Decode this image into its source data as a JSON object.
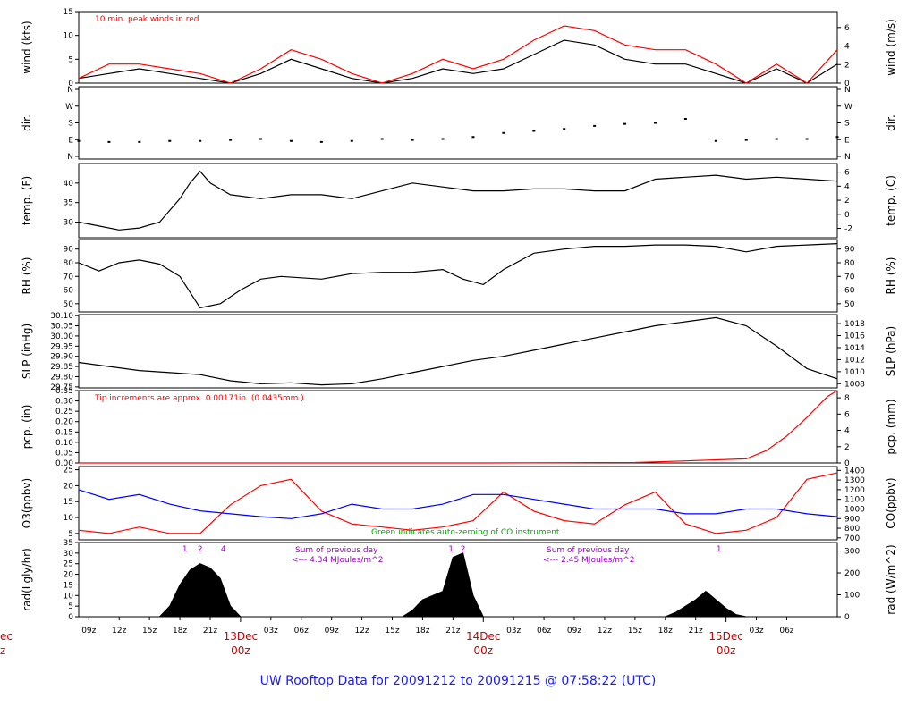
{
  "title": "UW Rooftop Data for 20091212  to  20091215 @ 07:58:22  (UTC)",
  "colors": {
    "red": "#ff0000",
    "blue": "#0000ff",
    "green": "#00aa00",
    "purple": "#9900cc",
    "dayred": "#cc0000",
    "titleblue": "#1a1aff"
  },
  "chart_data": [
    {
      "id": "wind",
      "type": "line",
      "ylabel_left": "wind (kts)",
      "ylabel_right": "wind (m/s)",
      "yticks_left": [
        "0",
        "5",
        "10",
        "15"
      ],
      "ylim_left": [
        0,
        15
      ],
      "yticks_right": [
        "0",
        "2",
        "4",
        "6"
      ],
      "ylim_right": [
        0,
        7.72
      ],
      "annotation": "10 min. peak winds in red",
      "series": [
        {
          "name": "wind speed (kts)",
          "color": "#000000",
          "x": [
            0,
            3,
            6,
            9,
            12,
            15,
            18,
            21,
            24,
            27,
            30,
            33,
            36,
            39,
            42,
            45,
            48,
            51,
            54,
            57,
            60,
            63,
            66,
            69,
            72,
            75
          ],
          "y": [
            1,
            2,
            3,
            2,
            1,
            0,
            2,
            5,
            3,
            1,
            0,
            1,
            3,
            2,
            3,
            6,
            9,
            8,
            5,
            4,
            4,
            2,
            0,
            3,
            0,
            4
          ]
        },
        {
          "name": "10 min. peak winds",
          "color": "#ff0000",
          "x": [
            0,
            3,
            6,
            9,
            12,
            15,
            18,
            21,
            24,
            27,
            30,
            33,
            36,
            39,
            42,
            45,
            48,
            51,
            54,
            57,
            60,
            63,
            66,
            69,
            72,
            75
          ],
          "y": [
            1,
            4,
            4,
            3,
            2,
            0,
            3,
            7,
            5,
            2,
            0,
            2,
            5,
            3,
            5,
            9,
            12,
            11,
            8,
            7,
            7,
            4,
            0,
            4,
            0,
            7
          ]
        }
      ]
    },
    {
      "id": "dir",
      "type": "scatter",
      "ylabel_left": "dir.",
      "ylabel_right": "dir.",
      "yticks_left": [
        "N",
        "E",
        "S",
        "W",
        "N"
      ],
      "ylim_left": [
        0,
        360
      ],
      "yticks_right": [
        "N",
        "E",
        "S",
        "W",
        "N"
      ],
      "series": [
        {
          "name": "direction (deg)",
          "color": "#000000",
          "x": [
            0,
            3,
            6,
            9,
            12,
            15,
            18,
            21,
            24,
            27,
            30,
            33,
            36,
            39,
            42,
            45,
            48,
            51,
            54,
            57,
            60,
            63,
            66,
            69,
            72,
            75
          ],
          "y": [
            90,
            85,
            85,
            90,
            90,
            95,
            100,
            90,
            85,
            90,
            100,
            95,
            100,
            110,
            130,
            140,
            150,
            165,
            175,
            180,
            200,
            90,
            95,
            100,
            100,
            110
          ]
        }
      ]
    },
    {
      "id": "temp",
      "type": "line",
      "ylabel_left": "temp. (F)",
      "ylabel_right": "temp. (C)",
      "yticks_left": [
        "30",
        "35",
        "40"
      ],
      "ylim_left": [
        26,
        45
      ],
      "yticks_right": [
        "-2",
        "0",
        "2",
        "4",
        "6"
      ],
      "ylim_right": [
        -3.33,
        7.22
      ],
      "series": [
        {
          "name": "temperature (F)",
          "color": "#000000",
          "x": [
            0,
            2,
            4,
            6,
            8,
            10,
            11,
            12,
            13,
            15,
            18,
            21,
            24,
            27,
            30,
            33,
            36,
            39,
            42,
            45,
            48,
            51,
            54,
            57,
            60,
            63,
            66,
            69,
            72,
            75
          ],
          "y": [
            30,
            29,
            28,
            28.5,
            30,
            36,
            40,
            43,
            40,
            37,
            36,
            37,
            37,
            36,
            38,
            40,
            39,
            38,
            38,
            38.5,
            38.5,
            38,
            38,
            41,
            41.5,
            42,
            41,
            41.5,
            41,
            40.5
          ]
        }
      ]
    },
    {
      "id": "rh",
      "type": "line",
      "ylabel_left": "RH (%)",
      "ylabel_right": "RH (%)",
      "yticks_left": [
        "50",
        "60",
        "70",
        "80",
        "90"
      ],
      "ylim_left": [
        44,
        97
      ],
      "yticks_right": [
        "50",
        "60",
        "70",
        "80",
        "90"
      ],
      "series": [
        {
          "name": "relative humidity (%)",
          "color": "#000000",
          "x": [
            0,
            2,
            4,
            6,
            8,
            10,
            12,
            14,
            16,
            18,
            20,
            24,
            27,
            30,
            33,
            36,
            38,
            40,
            42,
            45,
            48,
            51,
            54,
            57,
            60,
            63,
            66,
            69,
            72,
            75
          ],
          "y": [
            80,
            74,
            80,
            82,
            79,
            70,
            47,
            50,
            60,
            68,
            70,
            68,
            72,
            73,
            73,
            75,
            68,
            64,
            75,
            87,
            90,
            92,
            92,
            93,
            93,
            92,
            88,
            92,
            93,
            94
          ]
        }
      ]
    },
    {
      "id": "slp",
      "type": "line",
      "ylabel_left": "SLP (inHg)",
      "ylabel_right": "SLP (hPa)",
      "yticks_left": [
        "29.75",
        "29.80",
        "29.85",
        "29.90",
        "29.95",
        "30.00",
        "30.05",
        "30.10"
      ],
      "ylim_left": [
        29.745,
        30.105
      ],
      "yticks_right": [
        "1008",
        "1010",
        "1012",
        "1014",
        "1016",
        "1018"
      ],
      "ylim_right": [
        1007.3,
        1019.5
      ],
      "series": [
        {
          "name": "sea level pressure (inHg)",
          "color": "#000000",
          "x": [
            0,
            3,
            6,
            9,
            12,
            15,
            18,
            21,
            24,
            27,
            30,
            33,
            36,
            39,
            42,
            45,
            48,
            51,
            54,
            57,
            60,
            63,
            66,
            69,
            72,
            75
          ],
          "y": [
            29.87,
            29.85,
            29.83,
            29.82,
            29.81,
            29.78,
            29.765,
            29.77,
            29.76,
            29.765,
            29.79,
            29.82,
            29.85,
            29.88,
            29.9,
            29.93,
            29.96,
            29.99,
            30.02,
            30.05,
            30.07,
            30.09,
            30.05,
            29.95,
            29.84,
            29.79
          ]
        }
      ]
    },
    {
      "id": "pcp",
      "type": "line",
      "ylabel_left": "pcp. (in)",
      "ylabel_right": "pcp. (mm)",
      "yticks_left": [
        "0.00",
        "0.05",
        "0.10",
        "0.15",
        "0.20",
        "0.25",
        "0.30",
        "0.35"
      ],
      "ylim_left": [
        0,
        0.35
      ],
      "yticks_right": [
        "0",
        "2",
        "4",
        "6",
        "8"
      ],
      "ylim_right": [
        0,
        8.89
      ],
      "annotation": "Tip increments are approx. 0.00171in. (0.0435mm.)",
      "series": [
        {
          "name": "accumulated precipitation (in)",
          "color": "#ff0000",
          "x": [
            0,
            40,
            55,
            60,
            66,
            68,
            70,
            72,
            73,
            74,
            75
          ],
          "y": [
            0,
            0,
            0.002,
            0.01,
            0.02,
            0.06,
            0.13,
            0.22,
            0.27,
            0.32,
            0.35
          ]
        }
      ]
    },
    {
      "id": "o3co",
      "type": "line",
      "ylabel_left": "O3(ppbv)",
      "ylabel_right": "CO(ppbv)",
      "yticks_left": [
        "5",
        "10",
        "15",
        "20",
        "25"
      ],
      "ylim_left": [
        3,
        26
      ],
      "yticks_right": [
        "700",
        "800",
        "900",
        "1000",
        "1100",
        "1200",
        "1300",
        "1400"
      ],
      "ylim_right": [
        680,
        1440
      ],
      "annotation": "Green indicates auto-zeroing of CO instrument.",
      "series": [
        {
          "name": "O3 (ppbv)",
          "color": "#ff0000",
          "x": [
            0,
            3,
            6,
            9,
            12,
            15,
            18,
            21,
            24,
            27,
            30,
            33,
            36,
            39,
            42,
            45,
            48,
            51,
            54,
            57,
            60,
            63,
            66,
            69,
            72,
            75
          ],
          "y": [
            6,
            5,
            7,
            5,
            5,
            14,
            20,
            22,
            12,
            8,
            7,
            6,
            7,
            9,
            18,
            12,
            9,
            8,
            14,
            18,
            8,
            5,
            6,
            10,
            22,
            24
          ]
        },
        {
          "name": "CO (ppbv)",
          "color": "#0000ff",
          "x": [
            0,
            3,
            6,
            9,
            12,
            15,
            18,
            21,
            24,
            27,
            30,
            33,
            36,
            39,
            42,
            45,
            48,
            51,
            54,
            57,
            60,
            63,
            66,
            69,
            72,
            75
          ],
          "y": [
            1200,
            1100,
            1150,
            1050,
            980,
            950,
            920,
            900,
            950,
            1050,
            1000,
            1000,
            1050,
            1150,
            1150,
            1100,
            1050,
            1000,
            1000,
            1000,
            950,
            950,
            1000,
            1000,
            950,
            920
          ]
        }
      ]
    },
    {
      "id": "rad",
      "type": "area",
      "ylabel_left": "rad(Lgly/hr)",
      "ylabel_right": "rad (W/m^2)",
      "yticks_left": [
        "0",
        "5",
        "10",
        "15",
        "20",
        "25",
        "30",
        "35"
      ],
      "ylim_left": [
        0,
        35
      ],
      "yticks_right": [
        "0",
        "100",
        "200",
        "300"
      ],
      "ylim_right": [
        0,
        339
      ],
      "annotations": [
        "Sum of previous day",
        "<--- 4.34 MJoules/m^2",
        "Sum of previous day",
        "<--- 2.45 MJoules/m^2"
      ],
      "tick_marks": [
        {
          "label": "1",
          "x": 10.5
        },
        {
          "label": "2",
          "x": 12
        },
        {
          "label": "4",
          "x": 14.3
        },
        {
          "label": "1",
          "x": 36.8
        },
        {
          "label": "2",
          "x": 38.0
        },
        {
          "label": "1",
          "x": 63.3
        }
      ],
      "series": [
        {
          "name": "solar radiation (Lgly/hr)",
          "color": "#000000",
          "x": [
            0,
            8,
            9,
            10,
            11,
            12,
            13,
            14,
            15,
            16,
            32,
            33,
            34,
            35,
            36,
            37,
            38,
            39,
            40,
            58,
            59,
            60,
            61,
            62,
            63,
            64,
            65,
            66,
            75
          ],
          "y": [
            0,
            0,
            5,
            15,
            22,
            25,
            23,
            18,
            5,
            0,
            0,
            3,
            8,
            10,
            12,
            28,
            30,
            10,
            0,
            0,
            2,
            5,
            8,
            12,
            8,
            4,
            1,
            0,
            0
          ]
        }
      ]
    }
  ],
  "xaxis": {
    "unit": "hours from 20091212 07z",
    "ticks": [
      {
        "label": "09z",
        "x": 1
      },
      {
        "label": "12z",
        "x": 4
      },
      {
        "label": "15z",
        "x": 7
      },
      {
        "label": "18z",
        "x": 10
      },
      {
        "label": "21z",
        "x": 13
      },
      {
        "label": "03z",
        "x": 19
      },
      {
        "label": "06z",
        "x": 22
      },
      {
        "label": "09z",
        "x": 25
      },
      {
        "label": "12z",
        "x": 28
      },
      {
        "label": "15z",
        "x": 31
      },
      {
        "label": "18z",
        "x": 34
      },
      {
        "label": "21z",
        "x": 37
      },
      {
        "label": "03z",
        "x": 43
      },
      {
        "label": "06z",
        "x": 46
      },
      {
        "label": "09z",
        "x": 49
      },
      {
        "label": "12z",
        "x": 52
      },
      {
        "label": "15z",
        "x": 55
      },
      {
        "label": "18z",
        "x": 58
      },
      {
        "label": "21z",
        "x": 61
      },
      {
        "label": "03z",
        "x": 67
      },
      {
        "label": "06z",
        "x": 70
      }
    ],
    "days": [
      {
        "line1": "13Dec",
        "line2": "00z",
        "x": 16
      },
      {
        "line1": "14Dec",
        "line2": "00z",
        "x": 40
      },
      {
        "line1": "15Dec",
        "line2": "00z",
        "x": 64
      }
    ],
    "cut_off_left": {
      "line1": "ec",
      "line2": "z"
    },
    "xlim": [
      0,
      75
    ]
  }
}
